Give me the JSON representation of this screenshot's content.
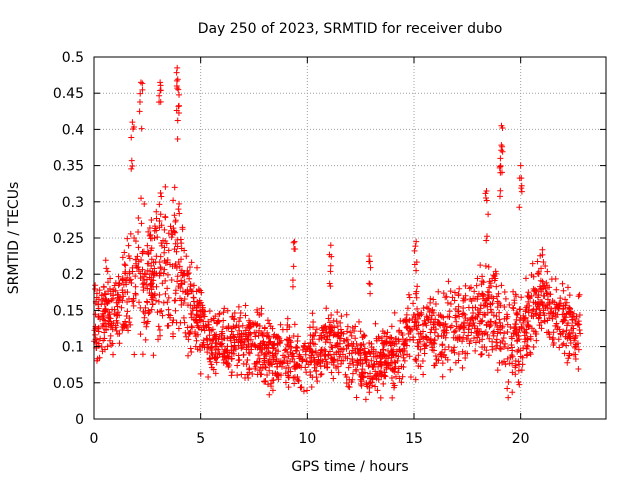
{
  "chart_data": {
    "type": "scatter",
    "title": "Day 250 of 2023, SRMTID for receiver dubo",
    "xlabel": "GPS time / hours",
    "ylabel": "SRMTID / TECUs",
    "xlim": [
      0,
      24
    ],
    "ylim": [
      0,
      0.5
    ],
    "x_ticks": [
      0,
      5,
      10,
      15,
      20
    ],
    "x_tick_labels": [
      "0",
      "5",
      "10",
      "15",
      "20"
    ],
    "y_ticks": [
      0,
      0.05,
      0.1,
      0.15,
      0.2,
      0.25,
      0.3,
      0.35,
      0.4,
      0.45,
      0.5
    ],
    "y_tick_labels": [
      "0",
      "0.05",
      "0.1",
      "0.15",
      "0.2",
      "0.25",
      "0.3",
      "0.35",
      "0.4",
      "0.45",
      "0.5"
    ],
    "grid": true,
    "marker": "+",
    "series_color": "#ff0000",
    "series": [
      {
        "name": "SRMTID",
        "envelope_note": "approximate per-hour central values of a dense scatter",
        "x": [
          0.0,
          0.5,
          1.0,
          1.5,
          2.0,
          2.5,
          3.0,
          3.5,
          4.0,
          4.5,
          5.0,
          5.5,
          6.0,
          6.5,
          7.0,
          7.5,
          8.0,
          8.5,
          9.0,
          9.5,
          10.0,
          10.5,
          11.0,
          11.5,
          12.0,
          12.5,
          13.0,
          13.5,
          14.0,
          14.5,
          15.0,
          15.5,
          16.0,
          16.5,
          17.0,
          17.5,
          18.0,
          18.5,
          19.0,
          19.5,
          20.0,
          20.5,
          21.0,
          21.5,
          22.0,
          22.5,
          22.8
        ],
        "y": [
          0.13,
          0.15,
          0.15,
          0.17,
          0.19,
          0.2,
          0.22,
          0.21,
          0.2,
          0.16,
          0.13,
          0.11,
          0.1,
          0.11,
          0.11,
          0.1,
          0.09,
          0.09,
          0.09,
          0.08,
          0.09,
          0.09,
          0.1,
          0.1,
          0.09,
          0.08,
          0.08,
          0.08,
          0.09,
          0.1,
          0.13,
          0.12,
          0.12,
          0.12,
          0.13,
          0.14,
          0.15,
          0.16,
          0.14,
          0.1,
          0.12,
          0.14,
          0.17,
          0.15,
          0.13,
          0.12,
          0.13
        ],
        "spread": [
          0.05,
          0.05,
          0.05,
          0.06,
          0.08,
          0.09,
          0.09,
          0.09,
          0.09,
          0.06,
          0.05,
          0.04,
          0.04,
          0.04,
          0.04,
          0.04,
          0.04,
          0.04,
          0.04,
          0.04,
          0.04,
          0.04,
          0.04,
          0.04,
          0.04,
          0.04,
          0.04,
          0.04,
          0.04,
          0.04,
          0.05,
          0.05,
          0.05,
          0.05,
          0.05,
          0.05,
          0.06,
          0.06,
          0.06,
          0.05,
          0.05,
          0.05,
          0.05,
          0.05,
          0.04,
          0.04,
          0.04
        ],
        "peaks": [
          {
            "x": 2.2,
            "y": 0.465
          },
          {
            "x": 3.1,
            "y": 0.465
          },
          {
            "x": 3.9,
            "y": 0.485
          },
          {
            "x": 3.95,
            "y": 0.455
          },
          {
            "x": 1.8,
            "y": 0.41
          },
          {
            "x": 19.1,
            "y": 0.405
          },
          {
            "x": 19.05,
            "y": 0.36
          },
          {
            "x": 18.4,
            "y": 0.315
          },
          {
            "x": 20.0,
            "y": 0.35
          },
          {
            "x": 9.4,
            "y": 0.245
          },
          {
            "x": 11.1,
            "y": 0.24
          },
          {
            "x": 12.9,
            "y": 0.225
          },
          {
            "x": 15.1,
            "y": 0.245
          }
        ]
      }
    ]
  }
}
